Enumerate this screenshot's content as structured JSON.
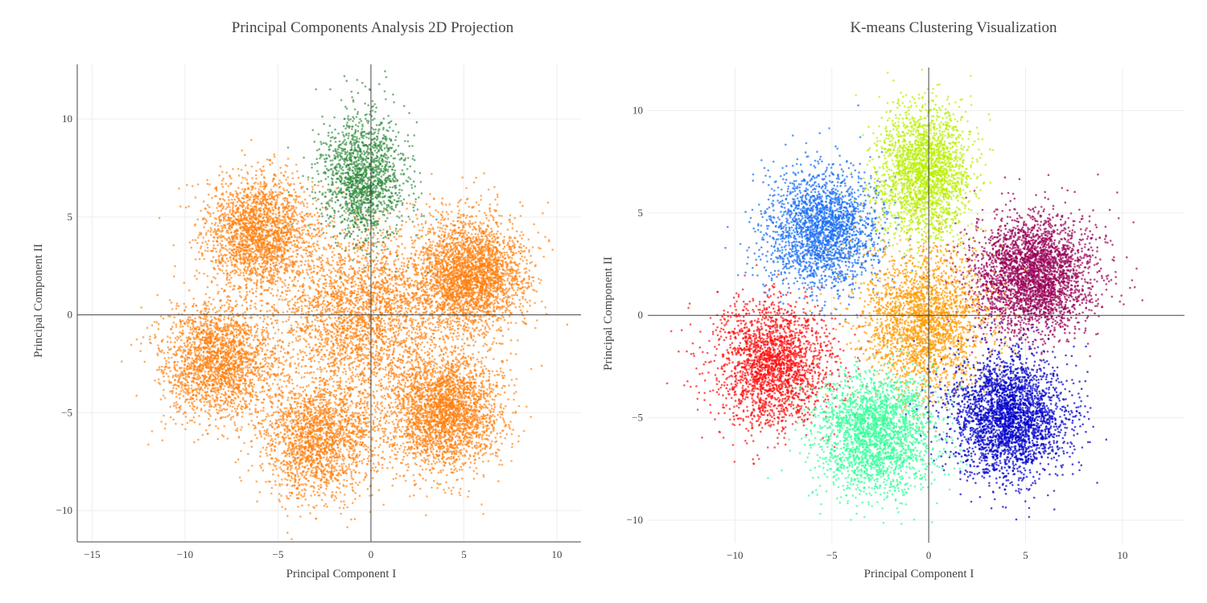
{
  "chart_data": [
    {
      "type": "scatter",
      "title": "Principal Components Analysis 2D Projection",
      "xlabel": "Principal Component I",
      "ylabel": "Principal Component II",
      "xlim": [
        -15.8,
        11.3
      ],
      "ylim": [
        -11.6,
        12.8
      ],
      "xticks": [
        -15,
        -10,
        -5,
        0,
        5,
        10
      ],
      "yticks": [
        -10,
        -5,
        0,
        5,
        10
      ],
      "xtick_labels": [
        "−15",
        "−10",
        "−5",
        "0",
        "5",
        "10"
      ],
      "ytick_labels": [
        "−10",
        "−5",
        "0",
        "5",
        "10"
      ],
      "grid": true,
      "zero_lines": true,
      "series": [
        {
          "color": "#ff7f0e",
          "opacity": 0.65,
          "clusters": [
            {
              "center": [
                -6.0,
                4.2
              ],
              "std": [
                1.45,
                1.45
              ],
              "n": 2200
            },
            {
              "center": [
                5.3,
                2.0
              ],
              "std": [
                1.5,
                1.45
              ],
              "n": 3000
            },
            {
              "center": [
                -8.2,
                -2.3
              ],
              "std": [
                1.5,
                1.5
              ],
              "n": 2200
            },
            {
              "center": [
                4.0,
                -4.9
              ],
              "std": [
                1.5,
                1.5
              ],
              "n": 2800
            },
            {
              "center": [
                -2.8,
                -6.3
              ],
              "std": [
                1.55,
                1.5
              ],
              "n": 2000
            },
            {
              "center": [
                -0.6,
                0.0
              ],
              "std": [
                2.1,
                2.2
              ],
              "n": 2600
            }
          ]
        },
        {
          "color": "#2e8b3a",
          "opacity": 0.65,
          "clusters": [
            {
              "center": [
                -0.4,
                7.0
              ],
              "std": [
                1.1,
                1.6
              ],
              "n": 1600
            }
          ]
        }
      ]
    },
    {
      "type": "scatter",
      "title": "K-means Clustering Visualization",
      "xlabel": "Principal Component I",
      "ylabel": "Principal Component II",
      "xlim": [
        -14.5,
        13.2
      ],
      "ylim": [
        -11.1,
        12.1
      ],
      "xticks": [
        -10,
        -5,
        0,
        5,
        10
      ],
      "yticks": [
        -10,
        -5,
        0,
        5,
        10
      ],
      "xtick_labels": [
        "−10",
        "−5",
        "0",
        "5",
        "10"
      ],
      "ytick_labels": [
        "−10",
        "−5",
        "0",
        "5",
        "10"
      ],
      "grid": true,
      "zero_lines": true,
      "series": [
        {
          "color": "#1a6ef2",
          "opacity": 0.7,
          "clusters": [
            {
              "center": [
                -5.5,
                4.2
              ],
              "std": [
                1.45,
                1.45
              ],
              "n": 2200
            }
          ]
        },
        {
          "color": "#b8f000",
          "opacity": 0.7,
          "clusters": [
            {
              "center": [
                -0.2,
                7.0
              ],
              "std": [
                1.2,
                1.6
              ],
              "n": 2200
            }
          ]
        },
        {
          "color": "#990055",
          "opacity": 0.7,
          "clusters": [
            {
              "center": [
                5.4,
                2.0
              ],
              "std": [
                1.5,
                1.45
              ],
              "n": 3000
            }
          ]
        },
        {
          "color": "#ff1010",
          "opacity": 0.7,
          "clusters": [
            {
              "center": [
                -8.0,
                -2.4
              ],
              "std": [
                1.5,
                1.5
              ],
              "n": 2200
            }
          ]
        },
        {
          "color": "#ff9a00",
          "opacity": 0.7,
          "clusters": [
            {
              "center": [
                -0.2,
                -0.3
              ],
              "std": [
                1.7,
                1.8
              ],
              "n": 2400
            }
          ]
        },
        {
          "color": "#33ff99",
          "opacity": 0.7,
          "clusters": [
            {
              "center": [
                -2.7,
                -5.8
              ],
              "std": [
                1.5,
                1.5
              ],
              "n": 2300
            }
          ]
        },
        {
          "color": "#0000cc",
          "opacity": 0.7,
          "clusters": [
            {
              "center": [
                4.2,
                -4.9
              ],
              "std": [
                1.5,
                1.5
              ],
              "n": 2800
            }
          ]
        }
      ]
    }
  ]
}
